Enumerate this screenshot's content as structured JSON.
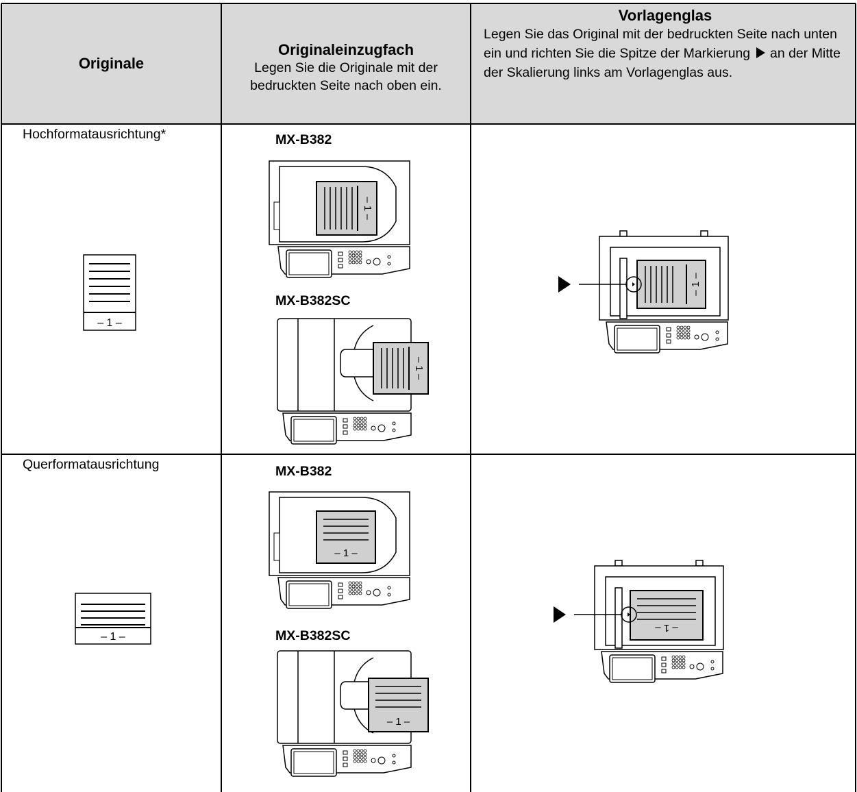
{
  "header": {
    "col1": "Originale",
    "col2": {
      "title": "Originaleinzugfach",
      "text": "Legen Sie die Originale mit der bedruckten Seite nach oben ein."
    },
    "col3": {
      "title": "Vorlagenglas",
      "text_before": "Legen Sie das Original mit der bedruckten Seite nach unten ein und richten Sie die Spitze der Markierung",
      "text_after": "an der Mitte der Skalierung links am Vorlagenglas aus."
    }
  },
  "rows": [
    {
      "orientation": "Hochformatausrichtung*",
      "models": [
        "MX-B382",
        "MX-B382SC"
      ]
    },
    {
      "orientation": "Querformatausrichtung",
      "models": [
        "MX-B382",
        "MX-B382SC"
      ]
    }
  ],
  "page_label": "– 1 –"
}
